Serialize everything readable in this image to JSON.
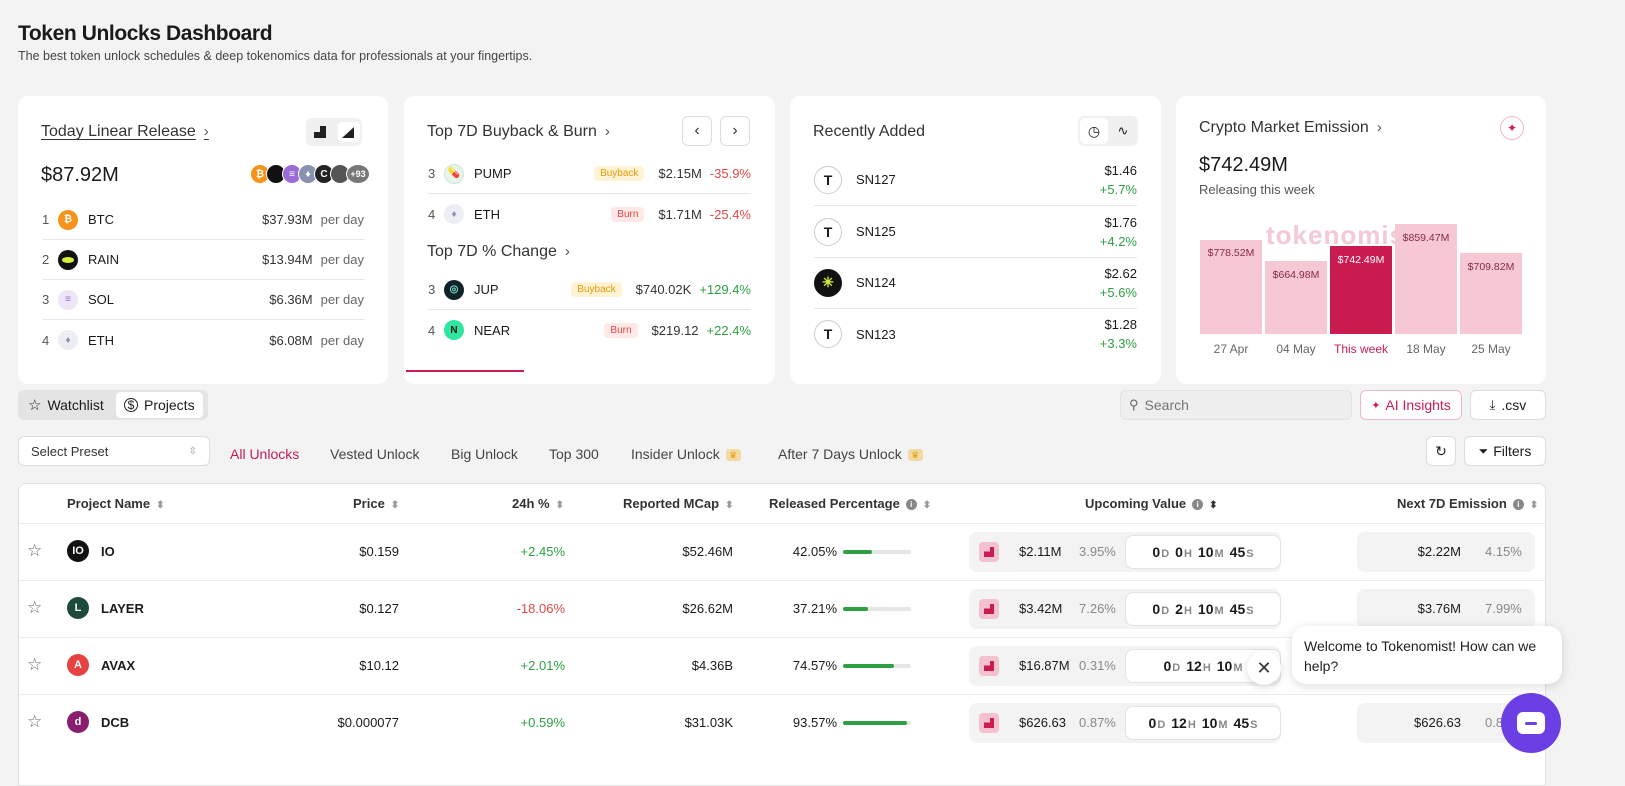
{
  "header": {
    "title": "Token Unlocks Dashboard",
    "subtitle": "The best token unlock schedules & deep tokenomics data for professionals at your fingertips."
  },
  "linear": {
    "title": "Today Linear Release",
    "total": "$87.92M",
    "more_count": "+93",
    "rows": [
      {
        "rank": "1",
        "symbol": "BTC",
        "value": "$37.93M",
        "unit": "per day",
        "color": "#f7931a"
      },
      {
        "rank": "2",
        "symbol": "RAIN",
        "value": "$13.94M",
        "unit": "per day",
        "color": "#111111"
      },
      {
        "rank": "3",
        "symbol": "SOL",
        "value": "$6.36M",
        "unit": "per day",
        "color": "#9b6bd6"
      },
      {
        "rank": "4",
        "symbol": "ETH",
        "value": "$6.08M",
        "unit": "per day",
        "color": "#8a92b2"
      }
    ]
  },
  "buyback": {
    "title": "Top 7D Buyback & Burn",
    "rows": [
      {
        "rank": "3",
        "symbol": "PUMP",
        "tag": "Buyback",
        "value": "$2.15M",
        "change": "-35.9%"
      },
      {
        "rank": "4",
        "symbol": "ETH",
        "tag": "Burn",
        "value": "$1.71M",
        "change": "-25.4%"
      }
    ],
    "change_title": "Top 7D % Change",
    "change_rows": [
      {
        "rank": "3",
        "symbol": "JUP",
        "tag": "Buyback",
        "value": "$740.02K",
        "change": "+129.4%"
      },
      {
        "rank": "4",
        "symbol": "NEAR",
        "tag": "Burn",
        "value": "$219.12",
        "change": "+22.4%"
      }
    ]
  },
  "recent": {
    "title": "Recently Added",
    "rows": [
      {
        "logo": "T",
        "symbol": "SN127",
        "price": "$1.46",
        "change": "+5.7%"
      },
      {
        "logo": "T",
        "symbol": "SN125",
        "price": "$1.76",
        "change": "+4.2%"
      },
      {
        "logo": "✳",
        "symbol": "SN124",
        "price": "$2.62",
        "change": "+5.6%"
      },
      {
        "logo": "T",
        "symbol": "SN123",
        "price": "$1.28",
        "change": "+3.3%"
      }
    ]
  },
  "emission": {
    "title": "Crypto Market Emission",
    "total": "$742.49M",
    "subtitle": "Releasing this week",
    "watermark": "tokenomist",
    "chart_data": {
      "type": "bar",
      "categories": [
        "27 Apr",
        "04 May",
        "This week",
        "18 May",
        "25 May"
      ],
      "values": [
        778.52,
        664.98,
        742.49,
        859.47,
        709.82
      ],
      "labels": [
        "$778.52M",
        "$664.98M",
        "$742.49M",
        "$859.47M",
        "$709.82M"
      ],
      "highlight": "This week",
      "ylim": [
        0,
        900
      ]
    }
  },
  "toolbar": {
    "watchlist": "Watchlist",
    "projects": "Projects",
    "search_placeholder": "Search",
    "ai_insights": "AI Insights",
    "csv": ".csv",
    "preset": "Select Preset",
    "filters": "Filters",
    "filter_tabs": [
      "All Unlocks",
      "Vested Unlock",
      "Big Unlock",
      "Top 300",
      "Insider Unlock",
      "After 7 Days Unlock"
    ]
  },
  "table": {
    "headers": {
      "name": "Project Name",
      "price": "Price",
      "change": "24h %",
      "mcap": "Reported MCap",
      "released": "Released Percentage",
      "upcoming": "Upcoming Value",
      "emission": "Next 7D Emission"
    },
    "rows": [
      {
        "name": "IO",
        "price": "$0.159",
        "change": "+2.45%",
        "mcap": "$52.46M",
        "released": "42.05%",
        "released_fraction": 0.4205,
        "up_value": "$2.11M",
        "up_pct": "3.95%",
        "d": "0",
        "h": "0",
        "m": "10",
        "s": "45",
        "em_value": "$2.22M",
        "em_pct": "4.15%",
        "logo_color": "#111111",
        "logo_text": "IO"
      },
      {
        "name": "LAYER",
        "price": "$0.127",
        "change": "-18.06%",
        "mcap": "$26.62M",
        "released": "37.21%",
        "released_fraction": 0.3721,
        "up_value": "$3.42M",
        "up_pct": "7.26%",
        "d": "0",
        "h": "2",
        "m": "10",
        "s": "45",
        "em_value": "$3.76M",
        "em_pct": "7.99%",
        "logo_color": "#1d4a3a",
        "logo_text": "L"
      },
      {
        "name": "AVAX",
        "price": "$10.12",
        "change": "+2.01%",
        "mcap": "$4.36B",
        "released": "74.57%",
        "released_fraction": 0.7457,
        "up_value": "$16.87M",
        "up_pct": "0.31%",
        "d": "0",
        "h": "12",
        "m": "10",
        "s": "",
        "em_value": "",
        "em_pct": "",
        "logo_color": "#e84142",
        "logo_text": "A"
      },
      {
        "name": "DCB",
        "price": "$0.000077",
        "change": "+0.59%",
        "mcap": "$31.03K",
        "released": "93.57%",
        "released_fraction": 0.9357,
        "up_value": "$626.63",
        "up_pct": "0.87%",
        "d": "0",
        "h": "12",
        "m": "10",
        "s": "45",
        "em_value": "$626.63",
        "em_pct": "0.8",
        "logo_color": "#8a1d6e",
        "logo_text": "d"
      }
    ],
    "units": {
      "d": "D",
      "h": "H",
      "m": "M",
      "s": "S"
    }
  },
  "chat": {
    "message": "Welcome to Tokenomist! How can we help?"
  }
}
